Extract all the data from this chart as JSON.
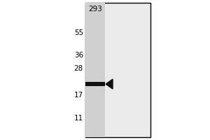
{
  "bg_color": "#ebebeb",
  "lane_color": "#d0d0d0",
  "border_color": "#000000",
  "cell_line_label": "293",
  "mw_markers": [
    {
      "label": "55",
      "value": 55
    },
    {
      "label": "36",
      "value": 36
    },
    {
      "label": "28",
      "value": 28
    },
    {
      "label": "17",
      "value": 17
    },
    {
      "label": "11",
      "value": 11
    }
  ],
  "band_mw": 21,
  "band_color": "#111111",
  "arrow_color": "#111111",
  "mw_min": 9,
  "mw_max": 75,
  "figure_bg": "#ffffff"
}
